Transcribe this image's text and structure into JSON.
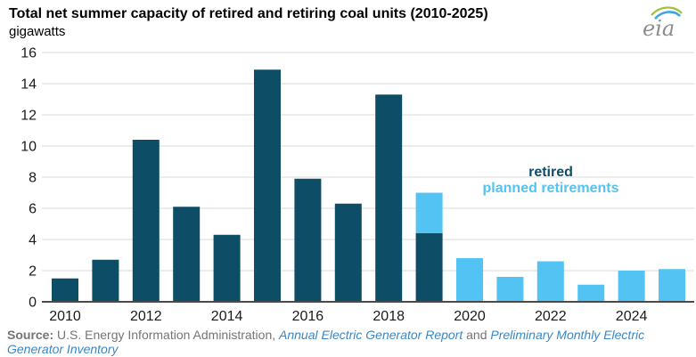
{
  "header": {
    "title": "Total net summer capacity of retired and retiring coal units (2010-2025)",
    "unit": "gigawatts",
    "logo_text": "eia"
  },
  "legend": {
    "retired": "retired",
    "planned": "planned retirements"
  },
  "source": {
    "label": "Source:",
    "text1": " U.S. Energy Information Administration, ",
    "link1": "Annual Electric Generator Report",
    "text2": " and ",
    "link2": "Preliminary Monthly Electric Generator Inventory"
  },
  "colors": {
    "retired_bar": "#0d4d66",
    "planned_bar": "#53c3f3",
    "gridline": "#d9d9d9",
    "axis_line": "#4a4a4a",
    "axis_text": "#1a1a1a",
    "source_gray": "#757575",
    "link_blue": "#3b87c4"
  },
  "chart_data": {
    "type": "bar",
    "stacked": true,
    "title": "Total net summer capacity of retired and retiring coal units (2010-2025)",
    "xlabel": "",
    "ylabel": "gigawatts",
    "ylim": [
      0,
      16
    ],
    "ytick_interval": 2,
    "yticks": [
      0,
      2,
      4,
      6,
      8,
      10,
      12,
      14,
      16
    ],
    "grid": true,
    "legend_position": "center-right",
    "categories": [
      2010,
      2011,
      2012,
      2013,
      2014,
      2015,
      2016,
      2017,
      2018,
      2019,
      2020,
      2021,
      2022,
      2023,
      2024,
      2025
    ],
    "xtick_labels": [
      "2010",
      "2012",
      "2014",
      "2016",
      "2018",
      "2020",
      "2022",
      "2024"
    ],
    "series": [
      {
        "name": "retired",
        "color": "#0d4d66",
        "values": [
          1.5,
          2.7,
          10.4,
          6.1,
          4.3,
          14.9,
          7.9,
          6.3,
          13.3,
          4.4,
          0,
          0,
          0,
          0,
          0,
          0
        ]
      },
      {
        "name": "planned retirements",
        "color": "#53c3f3",
        "values": [
          0,
          0,
          0,
          0,
          0,
          0,
          0,
          0,
          0,
          2.6,
          2.8,
          1.6,
          2.6,
          1.1,
          2.0,
          2.1
        ]
      }
    ]
  }
}
